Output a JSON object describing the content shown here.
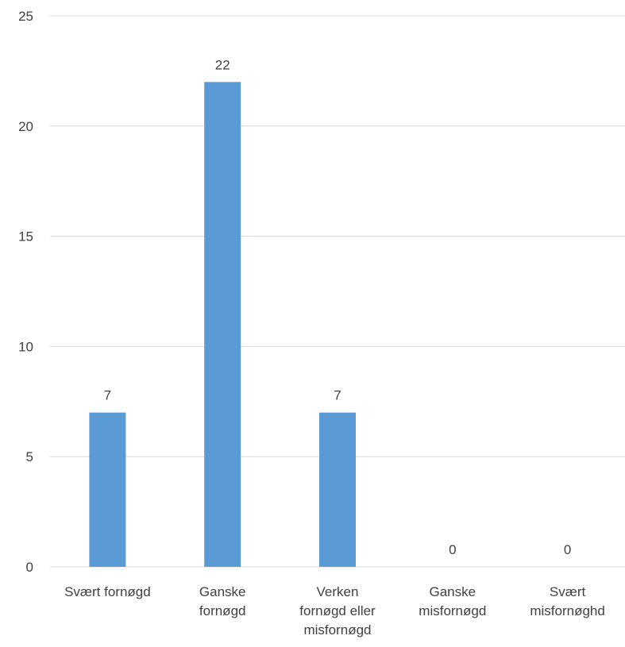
{
  "chart_data": {
    "type": "bar",
    "categories": [
      [
        "Svært fornøgd"
      ],
      [
        "Ganske",
        "fornøgd"
      ],
      [
        "Verken",
        "fornøgd eller",
        "misfornøgd"
      ],
      [
        "Ganske",
        "misfornøgd"
      ],
      [
        "Svært",
        "misfornøghd"
      ]
    ],
    "values": [
      7,
      22,
      7,
      0,
      0
    ],
    "data_labels": [
      "7",
      "22",
      "7",
      "0",
      "0"
    ],
    "ylim": [
      0,
      25
    ],
    "yticks": [
      "0",
      "5",
      "10",
      "15",
      "20",
      "25"
    ],
    "grid": true,
    "bar_color": "#5B9BD5",
    "grid_color": "#D9D9D9",
    "text_color": "#404040"
  }
}
